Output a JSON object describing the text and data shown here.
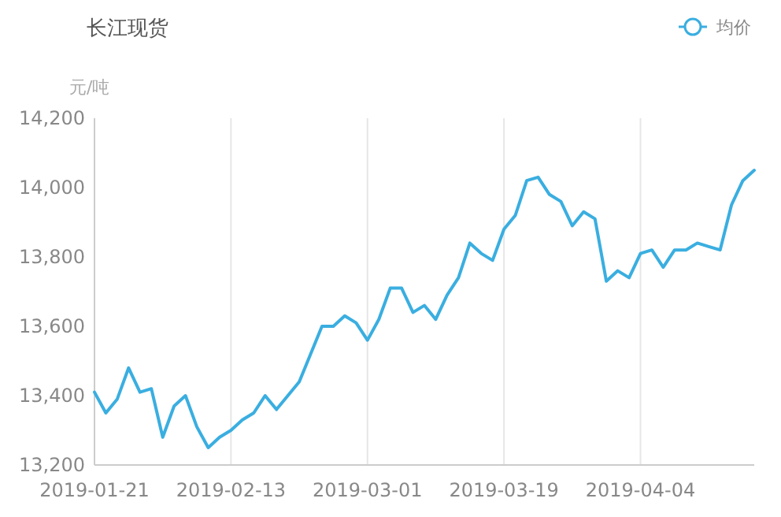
{
  "chart_data": {
    "type": "line",
    "title": "长江现货",
    "ylabel": "元/吨",
    "categories": [
      "2019-01-21",
      null,
      null,
      null,
      null,
      null,
      null,
      null,
      null,
      null,
      null,
      null,
      "2019-02-13",
      null,
      null,
      null,
      null,
      null,
      null,
      null,
      null,
      null,
      null,
      null,
      "2019-03-01",
      null,
      null,
      null,
      null,
      null,
      null,
      null,
      null,
      null,
      null,
      null,
      "2019-03-19",
      null,
      null,
      null,
      null,
      null,
      null,
      null,
      null,
      null,
      null,
      null,
      "2019-04-04",
      null,
      null,
      null,
      null,
      null,
      null,
      null,
      null,
      null,
      null
    ],
    "series": [
      {
        "name": "均价",
        "color": "#3aaee0",
        "values": [
          13410,
          13350,
          13390,
          13480,
          13410,
          13420,
          13280,
          13370,
          13400,
          13310,
          13250,
          13280,
          13300,
          13330,
          13350,
          13400,
          13360,
          13400,
          13440,
          13520,
          13600,
          13600,
          13630,
          13610,
          13560,
          13620,
          13710,
          13710,
          13640,
          13660,
          13620,
          13690,
          13740,
          13840,
          13810,
          13790,
          13880,
          13920,
          14020,
          14030,
          13980,
          13960,
          13890,
          13930,
          13910,
          13730,
          13760,
          13740,
          13810,
          13820,
          13770,
          13820,
          13820,
          13840,
          13830,
          13820,
          13950,
          14020,
          14050
        ]
      }
    ],
    "ylim": [
      13200,
      14200
    ],
    "yticks": [
      {
        "value": 13200,
        "label": "13,200"
      },
      {
        "value": 13400,
        "label": "13,400"
      },
      {
        "value": 13600,
        "label": "13,600"
      },
      {
        "value": 13800,
        "label": "13,800"
      },
      {
        "value": 14000,
        "label": "14,000"
      },
      {
        "value": 14200,
        "label": "14,200"
      }
    ],
    "grid": "x",
    "legend": "top right"
  }
}
